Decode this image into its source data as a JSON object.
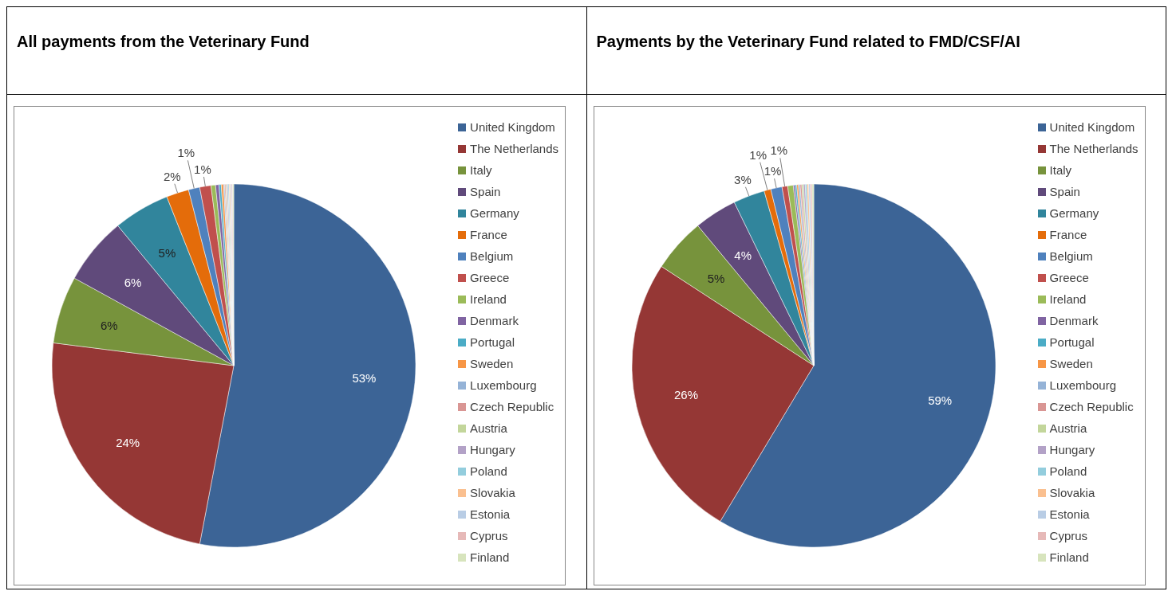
{
  "chart_data": [
    {
      "type": "pie",
      "title": "All payments from the Veterinary Fund",
      "legend": "right",
      "categories": [
        "United Kingdom",
        "The Netherlands",
        "Italy",
        "Spain",
        "Germany",
        "France",
        "Belgium",
        "Greece",
        "Ireland",
        "Denmark",
        "Portugal",
        "Sweden",
        "Luxembourg",
        "Czech Republic",
        "Austria",
        "Hungary",
        "Poland",
        "Slovakia",
        "Estonia",
        "Cyprus",
        "Finland"
      ],
      "values": [
        53,
        24,
        6,
        6,
        5,
        2,
        1,
        1,
        0.4,
        0.3,
        0.2,
        0.2,
        0.1,
        0.1,
        0.1,
        0.1,
        0.1,
        0.1,
        0.1,
        0.1,
        0.1
      ],
      "value_labels": [
        "53%",
        "24%",
        "6%",
        "6%",
        "5%",
        "2%",
        "1%",
        "1%",
        null,
        null,
        null,
        null,
        null,
        null,
        null,
        null,
        null,
        null,
        null,
        null,
        null
      ],
      "colors": [
        "#3c6496",
        "#953735",
        "#77933c",
        "#604a7b",
        "#31859c",
        "#e46c0a",
        "#4f81bd",
        "#c0504d",
        "#9bbb59",
        "#8064a2",
        "#4bacc6",
        "#f79646",
        "#95b3d7",
        "#d99694",
        "#c3d69b",
        "#b3a2c7",
        "#93cddd",
        "#fac090",
        "#b9cde5",
        "#e6b9b8",
        "#d7e4bd"
      ]
    },
    {
      "type": "pie",
      "title": "Payments by the Veterinary Fund related to FMD/CSF/AI",
      "legend": "right",
      "categories": [
        "United Kingdom",
        "The Netherlands",
        "Italy",
        "Spain",
        "Germany",
        "France",
        "Belgium",
        "Greece",
        "Ireland",
        "Denmark",
        "Portugal",
        "Sweden",
        "Luxembourg",
        "Czech Republic",
        "Austria",
        "Hungary",
        "Poland",
        "Slovakia",
        "Estonia",
        "Cyprus",
        "Finland"
      ],
      "values": [
        58.6,
        25.6,
        4.8,
        3.8,
        2.8,
        0.6,
        1,
        0.5,
        0.5,
        0.15,
        0.15,
        0.15,
        0.15,
        0.15,
        0.15,
        0.15,
        0.15,
        0.15,
        0.15,
        0.15,
        0.15
      ],
      "value_labels": [
        "59%",
        "26%",
        "5%",
        "4%",
        "3%",
        "1%",
        "1%",
        "1%",
        null,
        null,
        null,
        null,
        null,
        null,
        null,
        null,
        null,
        null,
        null,
        null,
        null
      ],
      "colors": [
        "#3c6496",
        "#953735",
        "#77933c",
        "#604a7b",
        "#31859c",
        "#e46c0a",
        "#4f81bd",
        "#c0504d",
        "#9bbb59",
        "#8064a2",
        "#4bacc6",
        "#f79646",
        "#95b3d7",
        "#d99694",
        "#c3d69b",
        "#b3a2c7",
        "#93cddd",
        "#fac090",
        "#b9cde5",
        "#e6b9b8",
        "#d7e4bd"
      ]
    }
  ]
}
